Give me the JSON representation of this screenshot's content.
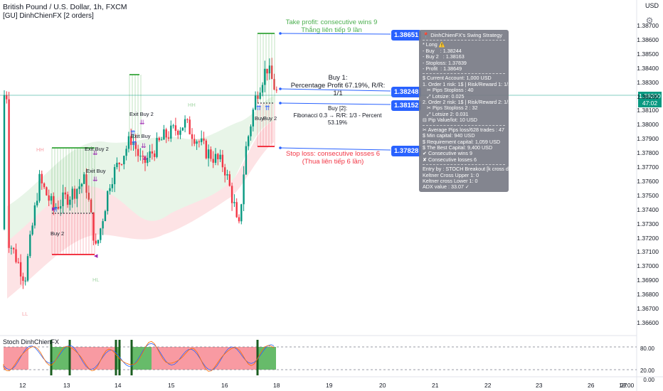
{
  "header": {
    "title": "British Pound / U.S. Dollar, 1h, FXCM",
    "subtitle": "[GU] DinhChienFX [2 orders]",
    "currency_button": "USD"
  },
  "annotations": {
    "take_profit_line1": "Take profit: consecutive wins 9",
    "take_profit_line2": "Thắng liên tiếp 9 lần",
    "buy1_line1": "Buy 1:",
    "buy1_line2": "Percentage Profit 67.19%, R/R: 1/1",
    "buy2_line1": "Buy [2]:",
    "buy2_line2": "Fibonacci 0.3 → R/R: 1/3 - Percent 53.19%",
    "stop_loss_line1": "Stop loss: consecutive losses 6",
    "stop_loss_line2": "(Thua liên tiếp 6 lần)",
    "exit_buy_2_a": "Exit Buy 2",
    "exit_buy_a": "Exit Buy",
    "exit_buy_2_b": "Exit Buy 2",
    "exit_buy_b": "Exit Buy",
    "buy2_a": "Buy 2",
    "buy_c": "Buy",
    "buy2_c": "Buy 2",
    "hh": "HH",
    "hl": "HL",
    "ll": "LL"
  },
  "price_tags": {
    "tp": "1.38651",
    "buy1": "1.38248",
    "buy2": "1.38152",
    "sl": "1.37828"
  },
  "strategy_panel": {
    "title": "DinhChienFX's Swing Strategy",
    "lines_a": [
      "* Long ⚠️",
      "- Buy    : 1.38244",
      "- Buy 2   : 1.38163",
      "- Stoploss: 1.37839",
      "- Profit  : 1.38649"
    ],
    "lines_b": [
      "$ Current Account: 1,000 USD",
      "1. Order 1 risk: 1$ | Risk/Reward 1: 1/1",
      "   ✂ Pips Stoploss : 40",
      "   ⤢ Lotsize: 0.025",
      "2. Order 2 risk: 1$ | Risk/Reward 2: 1/1.5",
      "   ✂ Pips Stoploss 2 : 32",
      "   ⤢ Lotsize 2: 0.031",
      "⊟ Pip Value/lot: 10 USD"
    ],
    "lines_c": [
      "✂ Average Pips loss/628 trades : 47",
      "$ Min capital: 940 USD",
      "$ Requirement capital: 1,059 USD",
      "$ The Best Capital: 9,400 USD",
      "✔ Consecutive wins 9",
      "✘ Consecutive losses 6"
    ],
    "lines_d": [
      "Entry by : STOCH Breakout [k cross d]",
      "Keltner Cross Upper 1: 0",
      "Keltner cross Lower 1: 0",
      "ADX value : 33.07 ✓"
    ]
  },
  "y_axis": [
    "1.38700",
    "1.38600",
    "1.38500",
    "1.38400",
    "1.38300",
    "1.38200",
    "1.38100",
    "1.38000",
    "1.37900",
    "1.37800",
    "1.37700",
    "1.37600",
    "1.37500",
    "1.37400",
    "1.37300",
    "1.37200",
    "1.37100",
    "1.37000",
    "1.36900",
    "1.36800",
    "1.36700",
    "1.36600"
  ],
  "current_price": {
    "value": "1.38200",
    "countdown": "47:02"
  },
  "x_axis": [
    "12",
    "13",
    "14",
    "15",
    "16",
    "18",
    "19",
    "20",
    "21",
    "22",
    "23",
    "26",
    "27",
    "18:00"
  ],
  "stoch": {
    "title": "Stoch DinhChienFX",
    "levels": [
      "80.00",
      "20.00",
      "0.00"
    ]
  },
  "colors": {
    "up": "#089981",
    "down": "#f23645",
    "tp_green": "#4caf50",
    "sl_red": "#f23645",
    "blue_tag": "#2962ff",
    "magenta": "#9c27b0"
  }
}
